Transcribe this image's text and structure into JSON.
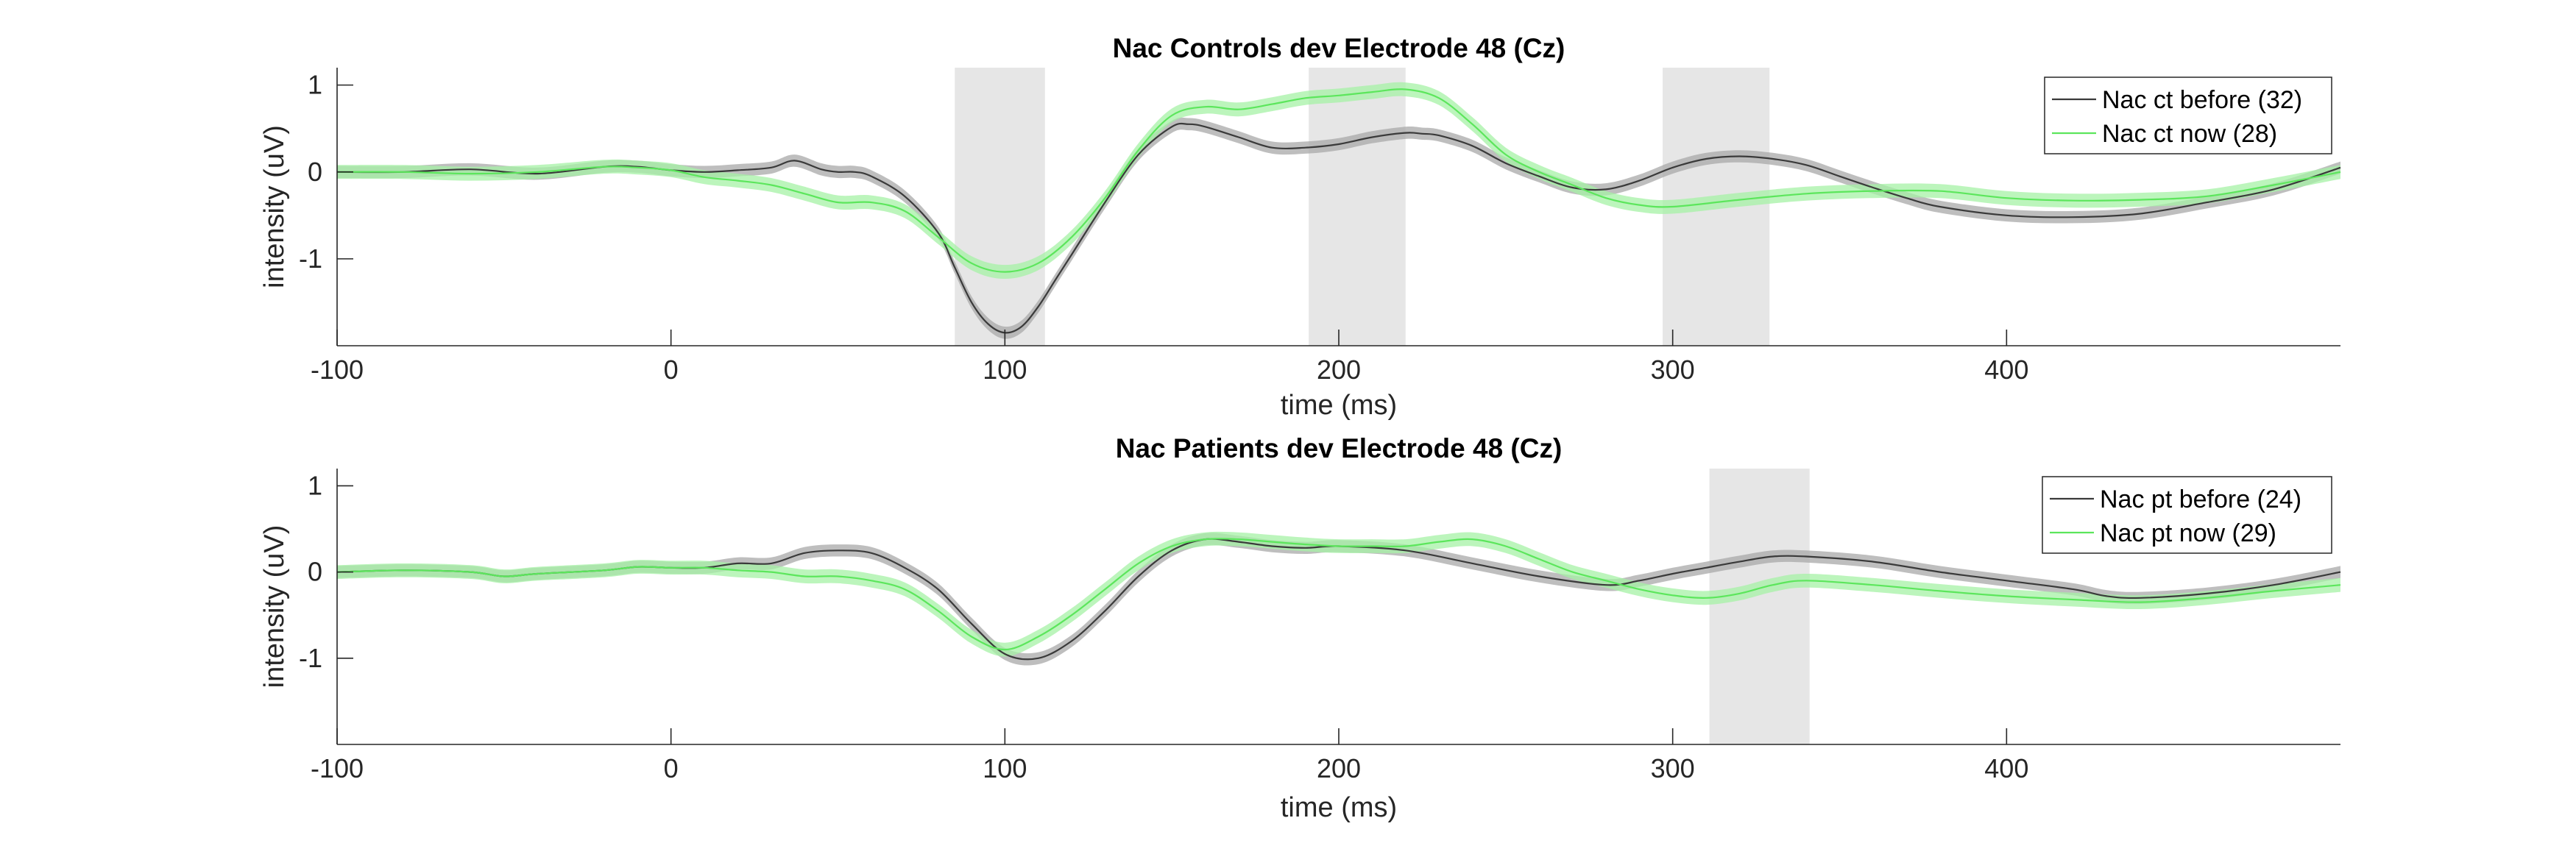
{
  "figure": {
    "panels": [
      {
        "title": "Nac Controls dev Electrode 48 (Cz)",
        "xlabel": "time (ms)",
        "ylabel": "intensity (uV)"
      },
      {
        "title": "Nac Patients dev Electrode 48 (Cz)",
        "xlabel": "time (ms)",
        "ylabel": "intensity (uV)"
      }
    ]
  },
  "chart_data": [
    {
      "type": "line",
      "title": "Nac Controls dev Electrode 48 (Cz)",
      "xlabel": "time (ms)",
      "ylabel": "intensity (uV)",
      "xlim": [
        -100,
        500
      ],
      "ylim": [
        -2,
        1.2
      ],
      "xticks": [
        -100,
        0,
        100,
        200,
        300,
        400
      ],
      "yticks": [
        -1,
        0,
        1
      ],
      "grid": false,
      "legend_position": "top-right",
      "shaded_windows": [
        [
          85,
          112
        ],
        [
          191,
          220
        ],
        [
          297,
          329
        ]
      ],
      "series": [
        {
          "name": "Nac ct before (32)",
          "color": "#3a3a3a",
          "band_color": "#a8a8a8",
          "band": 0.07,
          "x": [
            -100,
            -80,
            -60,
            -40,
            -20,
            -10,
            0,
            10,
            20,
            30,
            37,
            45,
            50,
            55,
            60,
            70,
            80,
            85,
            90,
            95,
            100,
            105,
            110,
            115,
            120,
            130,
            140,
            150,
            155,
            160,
            170,
            180,
            190,
            200,
            210,
            220,
            225,
            230,
            240,
            250,
            260,
            270,
            280,
            290,
            300,
            310,
            320,
            330,
            340,
            350,
            360,
            370,
            380,
            400,
            420,
            440,
            460,
            480,
            500
          ],
          "y": [
            0.0,
            0.0,
            0.03,
            -0.02,
            0.06,
            0.06,
            0.02,
            0.0,
            0.02,
            0.05,
            0.13,
            0.03,
            0.0,
            0.0,
            -0.05,
            -0.28,
            -0.7,
            -1.1,
            -1.5,
            -1.75,
            -1.85,
            -1.78,
            -1.55,
            -1.25,
            -0.95,
            -0.35,
            0.2,
            0.52,
            0.55,
            0.52,
            0.4,
            0.28,
            0.28,
            0.32,
            0.4,
            0.45,
            0.44,
            0.42,
            0.3,
            0.1,
            -0.05,
            -0.18,
            -0.2,
            -0.1,
            0.05,
            0.15,
            0.18,
            0.15,
            0.08,
            -0.05,
            -0.18,
            -0.3,
            -0.4,
            -0.5,
            -0.52,
            -0.48,
            -0.35,
            -0.2,
            0.05
          ]
        },
        {
          "name": "Nac ct now (28)",
          "color": "#5ce65c",
          "band_color": "#a6f2a6",
          "band": 0.08,
          "x": [
            -100,
            -80,
            -60,
            -40,
            -20,
            -10,
            0,
            10,
            20,
            30,
            40,
            50,
            60,
            70,
            80,
            90,
            100,
            110,
            120,
            130,
            140,
            150,
            160,
            170,
            180,
            190,
            200,
            210,
            220,
            230,
            240,
            250,
            260,
            270,
            280,
            290,
            300,
            320,
            340,
            360,
            380,
            400,
            420,
            440,
            460,
            480,
            500
          ],
          "y": [
            0.0,
            0.0,
            -0.02,
            0.0,
            0.06,
            0.05,
            0.02,
            -0.06,
            -0.1,
            -0.15,
            -0.25,
            -0.35,
            -0.35,
            -0.45,
            -0.75,
            -1.05,
            -1.15,
            -1.05,
            -0.75,
            -0.3,
            0.25,
            0.65,
            0.75,
            0.72,
            0.78,
            0.85,
            0.88,
            0.92,
            0.95,
            0.85,
            0.55,
            0.2,
            0.0,
            -0.15,
            -0.3,
            -0.38,
            -0.4,
            -0.32,
            -0.25,
            -0.22,
            -0.22,
            -0.3,
            -0.33,
            -0.32,
            -0.28,
            -0.15,
            0.0
          ]
        }
      ]
    },
    {
      "type": "line",
      "title": "Nac Patients dev Electrode 48 (Cz)",
      "xlabel": "time (ms)",
      "ylabel": "intensity (uV)",
      "xlim": [
        -100,
        500
      ],
      "ylim": [
        -2,
        1.2
      ],
      "xticks": [
        -100,
        0,
        100,
        200,
        300,
        400
      ],
      "yticks": [
        -1,
        0,
        1
      ],
      "grid": false,
      "legend_position": "top-right",
      "shaded_windows": [
        [
          311,
          341
        ]
      ],
      "series": [
        {
          "name": "Nac pt before (24)",
          "color": "#3a3a3a",
          "band_color": "#a8a8a8",
          "band": 0.07,
          "x": [
            -100,
            -80,
            -60,
            -50,
            -40,
            -20,
            -10,
            0,
            10,
            20,
            30,
            40,
            50,
            60,
            70,
            80,
            90,
            100,
            110,
            120,
            130,
            140,
            150,
            160,
            170,
            180,
            190,
            200,
            220,
            240,
            260,
            280,
            290,
            300,
            310,
            320,
            330,
            340,
            360,
            380,
            400,
            420,
            430,
            440,
            460,
            480,
            500
          ],
          "y": [
            0.0,
            0.02,
            0.0,
            -0.05,
            -0.02,
            0.02,
            0.06,
            0.05,
            0.05,
            0.1,
            0.1,
            0.22,
            0.25,
            0.22,
            0.05,
            -0.2,
            -0.6,
            -0.95,
            -1.0,
            -0.8,
            -0.45,
            -0.05,
            0.25,
            0.38,
            0.35,
            0.3,
            0.28,
            0.3,
            0.25,
            0.1,
            -0.05,
            -0.15,
            -0.1,
            -0.02,
            0.05,
            0.12,
            0.18,
            0.18,
            0.12,
            0.0,
            -0.1,
            -0.2,
            -0.28,
            -0.3,
            -0.25,
            -0.15,
            0.0
          ]
        },
        {
          "name": "Nac pt now (29)",
          "color": "#5ce65c",
          "band_color": "#a6f2a6",
          "band": 0.08,
          "x": [
            -100,
            -80,
            -60,
            -50,
            -40,
            -20,
            -10,
            0,
            10,
            20,
            30,
            40,
            50,
            60,
            70,
            80,
            90,
            100,
            110,
            120,
            130,
            140,
            150,
            160,
            170,
            180,
            190,
            200,
            210,
            220,
            230,
            240,
            250,
            260,
            270,
            280,
            290,
            300,
            310,
            320,
            330,
            340,
            360,
            380,
            400,
            420,
            440,
            460,
            480,
            500
          ],
          "y": [
            0.0,
            0.02,
            0.0,
            -0.05,
            -0.02,
            0.02,
            0.06,
            0.05,
            0.05,
            0.02,
            0.0,
            -0.05,
            -0.05,
            -0.1,
            -0.2,
            -0.45,
            -0.75,
            -0.9,
            -0.75,
            -0.5,
            -0.2,
            0.1,
            0.3,
            0.38,
            0.38,
            0.35,
            0.32,
            0.3,
            0.3,
            0.3,
            0.35,
            0.38,
            0.3,
            0.15,
            0.0,
            -0.1,
            -0.2,
            -0.27,
            -0.3,
            -0.25,
            -0.15,
            -0.1,
            -0.15,
            -0.22,
            -0.28,
            -0.32,
            -0.35,
            -0.3,
            -0.22,
            -0.15
          ]
        }
      ]
    }
  ]
}
